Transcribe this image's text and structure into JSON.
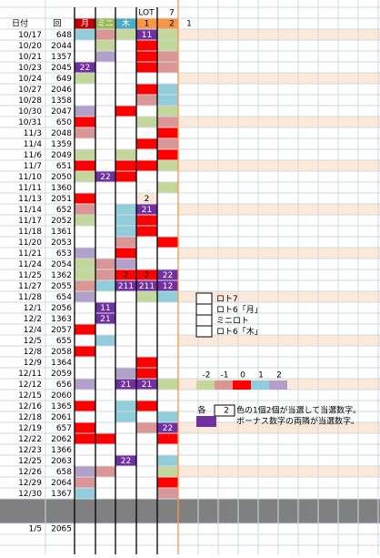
{
  "header": {
    "date": "日付",
    "no": "回",
    "mon": "月",
    "mini": "ミニ",
    "thu": "木",
    "lot": "LOT",
    "seven": 7,
    "c1": 1,
    "c2": 2,
    "extra": 1
  },
  "rows": [
    {
      "date": "10/17",
      "no": 648,
      "c1": 11
    },
    {
      "date": "10/20",
      "no": 2044
    },
    {
      "date": "10/21",
      "no": 1357
    },
    {
      "date": "10/23",
      "no": 2045,
      "mon": 22
    },
    {
      "date": "10/24",
      "no": 649
    },
    {
      "date": "10/27",
      "no": 2046
    },
    {
      "date": "10/28",
      "no": 1358
    },
    {
      "date": "10/30",
      "no": 2047
    },
    {
      "date": "10/31",
      "no": 650
    },
    {
      "date": "11/3",
      "no": 2048
    },
    {
      "date": "11/4",
      "no": 1359
    },
    {
      "date": "11/6",
      "no": 2049
    },
    {
      "date": "11/7",
      "no": 651
    },
    {
      "date": "11/10",
      "no": 2050,
      "mini": 22
    },
    {
      "date": "11/11",
      "no": 1360
    },
    {
      "date": "11/13",
      "no": 2051,
      "c1": 2
    },
    {
      "date": "11/14",
      "no": 652,
      "c1": 21
    },
    {
      "date": "11/17",
      "no": 2052
    },
    {
      "date": "11/18",
      "no": 1361
    },
    {
      "date": "11/20",
      "no": 2053
    },
    {
      "date": "11/21",
      "no": 653
    },
    {
      "date": "11/24",
      "no": 2054
    },
    {
      "date": "11/25",
      "no": 1362,
      "thu": 2,
      "c1": 2,
      "c2": 22
    },
    {
      "date": "11/27",
      "no": 2055,
      "thu": 211,
      "c1": 211,
      "c2": 12
    },
    {
      "date": "11/28",
      "no": 654
    },
    {
      "date": "12/1",
      "no": 2056,
      "mini": 11
    },
    {
      "date": "12/2",
      "no": 1363,
      "mini": 21
    },
    {
      "date": "12/4",
      "no": 2057
    },
    {
      "date": "12/5",
      "no": 655
    },
    {
      "date": "12/8",
      "no": 2058
    },
    {
      "date": "12/9",
      "no": 1364
    },
    {
      "date": "12/11",
      "no": 2059
    },
    {
      "date": "12/12",
      "no": 656,
      "thu": 21,
      "c1": 21
    },
    {
      "date": "12/15",
      "no": 2060
    },
    {
      "date": "12/16",
      "no": 1365
    },
    {
      "date": "12/18",
      "no": 2061
    },
    {
      "date": "12/19",
      "no": 657,
      "c2": 22
    },
    {
      "date": "12/22",
      "no": 2062
    },
    {
      "date": "12/23",
      "no": 1366
    },
    {
      "date": "12/25",
      "no": 2063,
      "thu": 22
    },
    {
      "date": "12/26",
      "no": 658
    },
    {
      "date": "12/29",
      "no": 2064
    },
    {
      "date": "12/30",
      "no": 1367
    }
  ],
  "next": {
    "date": "1/5",
    "no": 2065
  },
  "legend": {
    "items": [
      "ロト7",
      "ロト6「月」",
      "ミニロト",
      "ロト6「木」"
    ],
    "scale": [
      -2,
      -1,
      0,
      1,
      2
    ],
    "note_prefix": "各",
    "note_count": 2,
    "note_text": "色の1個2個が当選して当選数字。",
    "bonus_text": "ボーナス数字の両隣が当選数字。"
  }
}
